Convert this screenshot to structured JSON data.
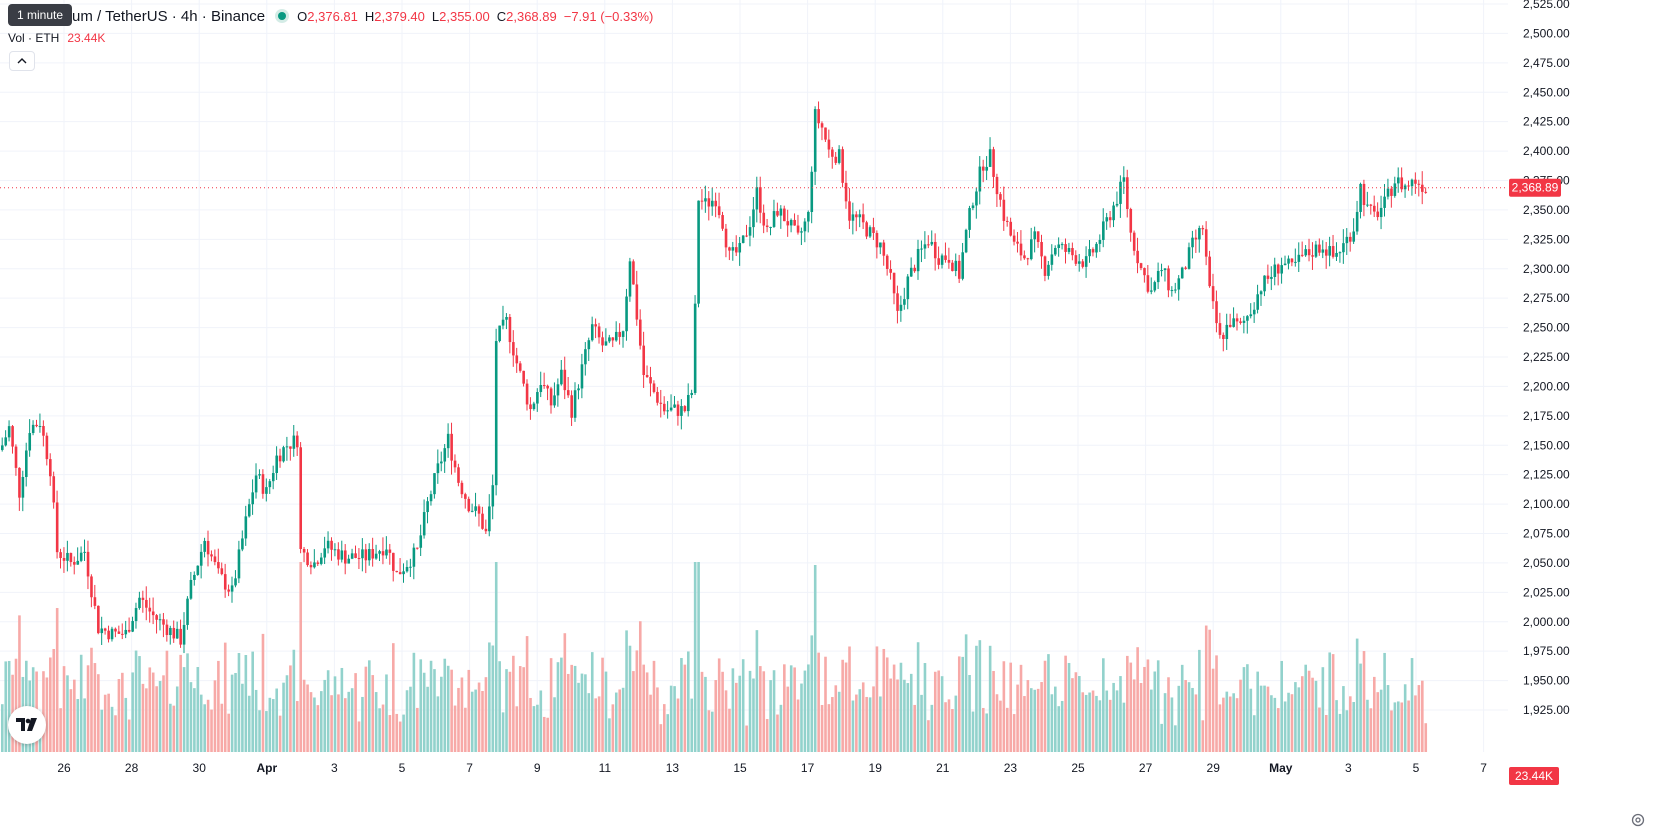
{
  "header": {
    "tooltip": "1 minute",
    "symbol_title": "um / TetherUS · 4h · Binance",
    "o_label": "O",
    "o_value": "2,376.81",
    "h_label": "H",
    "h_value": "2,379.40",
    "l_label": "L",
    "l_value": "2,355.00",
    "c_label": "C",
    "c_value": "2,368.89",
    "change": "−7.91 (−0.33%)"
  },
  "volume_legend": {
    "label": "Vol · ETH",
    "value": "23.44K"
  },
  "collapse_icon": "chevron-up-icon",
  "logo": "tradingview-logo",
  "settings_icon": "gear-icon",
  "colors": {
    "up": "#089981",
    "down": "#f23645",
    "vol_up": "#92d2cc",
    "vol_down": "#f7a9a7",
    "grid": "#f0f3fa"
  },
  "chart_data": {
    "type": "candlestick",
    "interval": "4h",
    "title": "um / TetherUS · 4h · Binance",
    "y_ticks": [
      "2,525.00",
      "2,500.00",
      "2,475.00",
      "2,450.00",
      "2,425.00",
      "2,400.00",
      "2,375.00",
      "2,350.00",
      "2,325.00",
      "2,300.00",
      "2,275.00",
      "2,250.00",
      "2,225.00",
      "2,200.00",
      "2,175.00",
      "2,150.00",
      "2,125.00",
      "2,100.00",
      "2,075.00",
      "2,050.00",
      "2,025.00",
      "2,000.00",
      "1,975.00",
      "1,950.00",
      "1,925.00"
    ],
    "ylim": [
      1915,
      2529
    ],
    "x_ticks": [
      {
        "label": "26",
        "day": 26
      },
      {
        "label": "28",
        "day": 28
      },
      {
        "label": "30",
        "day": 30
      },
      {
        "label": "Apr",
        "day": 32,
        "bold": true
      },
      {
        "label": "3",
        "day": 34
      },
      {
        "label": "5",
        "day": 36
      },
      {
        "label": "7",
        "day": 38
      },
      {
        "label": "9",
        "day": 40
      },
      {
        "label": "11",
        "day": 42
      },
      {
        "label": "13",
        "day": 44
      },
      {
        "label": "15",
        "day": 46
      },
      {
        "label": "17",
        "day": 48
      },
      {
        "label": "19",
        "day": 50
      },
      {
        "label": "21",
        "day": 52
      },
      {
        "label": "23",
        "day": 54
      },
      {
        "label": "25",
        "day": 56
      },
      {
        "label": "27",
        "day": 58
      },
      {
        "label": "29",
        "day": 60
      },
      {
        "label": "May",
        "day": 62,
        "bold": true
      },
      {
        "label": "3",
        "day": 64
      },
      {
        "label": "5",
        "day": 66
      },
      {
        "label": "7",
        "day": 68
      }
    ],
    "last_price": 2368.89,
    "last_price_label": "2,368.89",
    "last_volume_label": "23.44K",
    "key_points": [
      [
        0,
        2150
      ],
      [
        2,
        2165
      ],
      [
        5,
        2110
      ],
      [
        8,
        2165
      ],
      [
        11,
        2170
      ],
      [
        14,
        2130
      ],
      [
        16,
        2060
      ],
      [
        20,
        2050
      ],
      [
        24,
        2060
      ],
      [
        28,
        1995
      ],
      [
        32,
        1990
      ],
      [
        36,
        1990
      ],
      [
        40,
        2020
      ],
      [
        44,
        2005
      ],
      [
        48,
        1995
      ],
      [
        52,
        1985
      ],
      [
        55,
        2030
      ],
      [
        59,
        2070
      ],
      [
        63,
        2040
      ],
      [
        67,
        2025
      ],
      [
        71,
        2085
      ],
      [
        74,
        2125
      ],
      [
        77,
        2110
      ],
      [
        80,
        2140
      ],
      [
        83,
        2150
      ],
      [
        86,
        2155
      ],
      [
        87,
        2060
      ],
      [
        91,
        2050
      ],
      [
        94,
        2065
      ],
      [
        100,
        2055
      ],
      [
        106,
        2055
      ],
      [
        112,
        2065
      ],
      [
        115,
        2040
      ],
      [
        118,
        2050
      ],
      [
        121,
        2060
      ],
      [
        124,
        2100
      ],
      [
        127,
        2130
      ],
      [
        130,
        2155
      ],
      [
        133,
        2120
      ],
      [
        136,
        2100
      ],
      [
        139,
        2090
      ],
      [
        141,
        2075
      ],
      [
        143,
        2115
      ],
      [
        144,
        2240
      ],
      [
        147,
        2255
      ],
      [
        150,
        2220
      ],
      [
        154,
        2180
      ],
      [
        157,
        2205
      ],
      [
        160,
        2185
      ],
      [
        163,
        2210
      ],
      [
        166,
        2180
      ],
      [
        169,
        2215
      ],
      [
        172,
        2250
      ],
      [
        175,
        2235
      ],
      [
        178,
        2235
      ],
      [
        181,
        2250
      ],
      [
        183,
        2310
      ],
      [
        185,
        2260
      ],
      [
        187,
        2210
      ],
      [
        190,
        2195
      ],
      [
        193,
        2180
      ],
      [
        196,
        2180
      ],
      [
        199,
        2180
      ],
      [
        201,
        2195
      ],
      [
        202,
        2265
      ],
      [
        203,
        2360
      ],
      [
        205,
        2355
      ],
      [
        208,
        2360
      ],
      [
        210,
        2340
      ],
      [
        212,
        2310
      ],
      [
        215,
        2315
      ],
      [
        218,
        2340
      ],
      [
        220,
        2365
      ],
      [
        223,
        2330
      ],
      [
        226,
        2350
      ],
      [
        229,
        2340
      ],
      [
        232,
        2325
      ],
      [
        235,
        2345
      ],
      [
        237,
        2430
      ],
      [
        239,
        2420
      ],
      [
        241,
        2400
      ],
      [
        244,
        2395
      ],
      [
        247,
        2345
      ],
      [
        250,
        2340
      ],
      [
        253,
        2330
      ],
      [
        256,
        2320
      ],
      [
        259,
        2290
      ],
      [
        261,
        2260
      ],
      [
        264,
        2290
      ],
      [
        267,
        2310
      ],
      [
        270,
        2325
      ],
      [
        273,
        2310
      ],
      [
        276,
        2310
      ],
      [
        279,
        2295
      ],
      [
        281,
        2330
      ],
      [
        283,
        2360
      ],
      [
        286,
        2390
      ],
      [
        288,
        2395
      ],
      [
        290,
        2370
      ],
      [
        292,
        2345
      ],
      [
        295,
        2320
      ],
      [
        298,
        2310
      ],
      [
        301,
        2325
      ],
      [
        304,
        2300
      ],
      [
        307,
        2320
      ],
      [
        310,
        2315
      ],
      [
        313,
        2310
      ],
      [
        316,
        2305
      ],
      [
        319,
        2320
      ],
      [
        322,
        2340
      ],
      [
        325,
        2360
      ],
      [
        327,
        2375
      ],
      [
        329,
        2330
      ],
      [
        332,
        2300
      ],
      [
        335,
        2280
      ],
      [
        338,
        2300
      ],
      [
        341,
        2280
      ],
      [
        344,
        2295
      ],
      [
        347,
        2320
      ],
      [
        350,
        2335
      ],
      [
        352,
        2280
      ],
      [
        355,
        2240
      ],
      [
        358,
        2255
      ],
      [
        361,
        2250
      ],
      [
        364,
        2265
      ],
      [
        367,
        2285
      ],
      [
        370,
        2295
      ],
      [
        373,
        2305
      ],
      [
        376,
        2300
      ],
      [
        379,
        2310
      ],
      [
        382,
        2315
      ],
      [
        385,
        2320
      ],
      [
        388,
        2310
      ],
      [
        391,
        2320
      ],
      [
        394,
        2335
      ],
      [
        396,
        2370
      ],
      [
        398,
        2350
      ],
      [
        400,
        2345
      ],
      [
        403,
        2355
      ],
      [
        406,
        2375
      ],
      [
        409,
        2370
      ],
      [
        412,
        2375
      ],
      [
        415,
        2369
      ]
    ],
    "volume_scale_max": 30,
    "volume_unit": "K"
  }
}
